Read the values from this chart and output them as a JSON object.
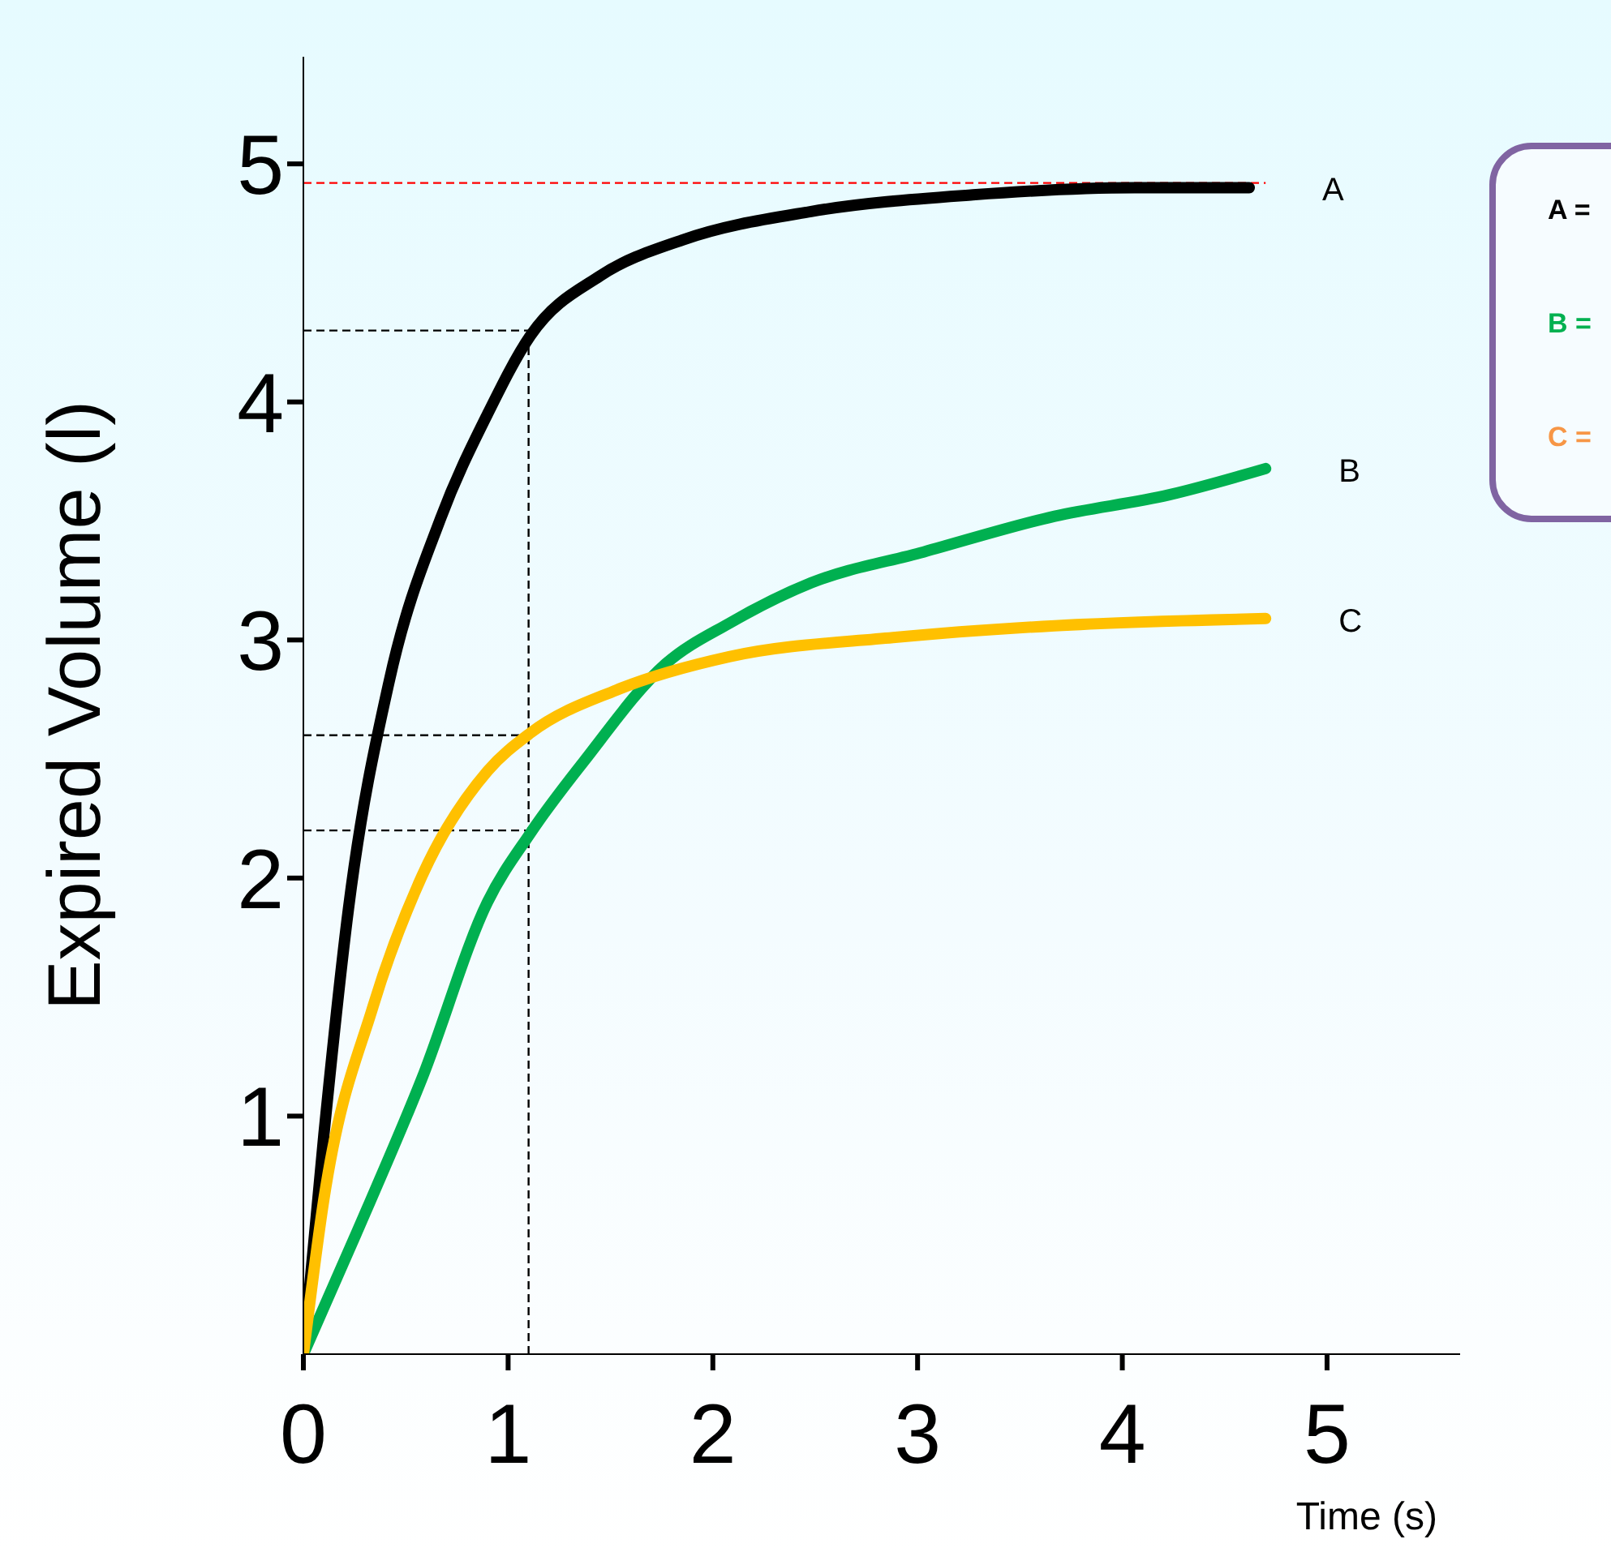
{
  "chart_data": {
    "type": "line",
    "xlabel": "Time (s)",
    "ylabel": "Expired Volume (l)",
    "xlim": [
      0,
      5.65
    ],
    "ylim": [
      0,
      5.45
    ],
    "xticks": [
      0,
      1,
      2,
      3,
      4,
      5
    ],
    "yticks": [
      1,
      2,
      3,
      4,
      5
    ],
    "grid": false,
    "legend": false,
    "marker": "none",
    "line_style": "solid",
    "series": [
      {
        "name": "A",
        "color": "#000000",
        "x": [
          0,
          0.1,
          0.22,
          0.42,
          0.67,
          0.9,
          1.11,
          1.45,
          1.85,
          2.48,
          3.27,
          4.06,
          4.62
        ],
        "values": [
          0,
          0.92,
          1.87,
          2.83,
          3.51,
          3.95,
          4.28,
          4.53,
          4.68,
          4.8,
          4.87,
          4.9,
          4.9
        ]
      },
      {
        "name": "B",
        "color": "#00b050",
        "x": [
          0,
          0.26,
          0.58,
          0.9,
          1.11,
          1.37,
          1.77,
          2.08,
          2.48,
          3.03,
          3.67,
          4.23,
          4.7
        ],
        "values": [
          0,
          0.51,
          1.16,
          1.9,
          2.19,
          2.49,
          2.9,
          3.07,
          3.24,
          3.37,
          3.52,
          3.61,
          3.72
        ]
      },
      {
        "name": "C",
        "color": "#ffc000",
        "x": [
          0,
          0.1,
          0.34,
          0.58,
          0.9,
          1.11,
          1.53,
          2.08,
          2.88,
          3.67,
          4.7
        ],
        "values": [
          0,
          0.65,
          1.46,
          2.01,
          2.45,
          2.61,
          2.79,
          2.93,
          3.01,
          3.06,
          3.09
        ]
      }
    ],
    "ref_lines": [
      {
        "axis": "y",
        "value": 4.92,
        "color": "#ff0000",
        "line_style": "dashed"
      },
      {
        "axis": "y",
        "value": 4.3,
        "color": "#000000",
        "line_style": "dashed"
      },
      {
        "axis": "y",
        "value": 2.6,
        "color": "#000000",
        "line_style": "dashed"
      },
      {
        "axis": "y",
        "value": 2.2,
        "color": "#000000",
        "line_style": "dashed"
      },
      {
        "axis": "x",
        "value": 1.1,
        "color": "#000000",
        "line_style": "dashed"
      }
    ],
    "annotations": [
      "A =",
      "B =",
      "C ="
    ]
  }
}
